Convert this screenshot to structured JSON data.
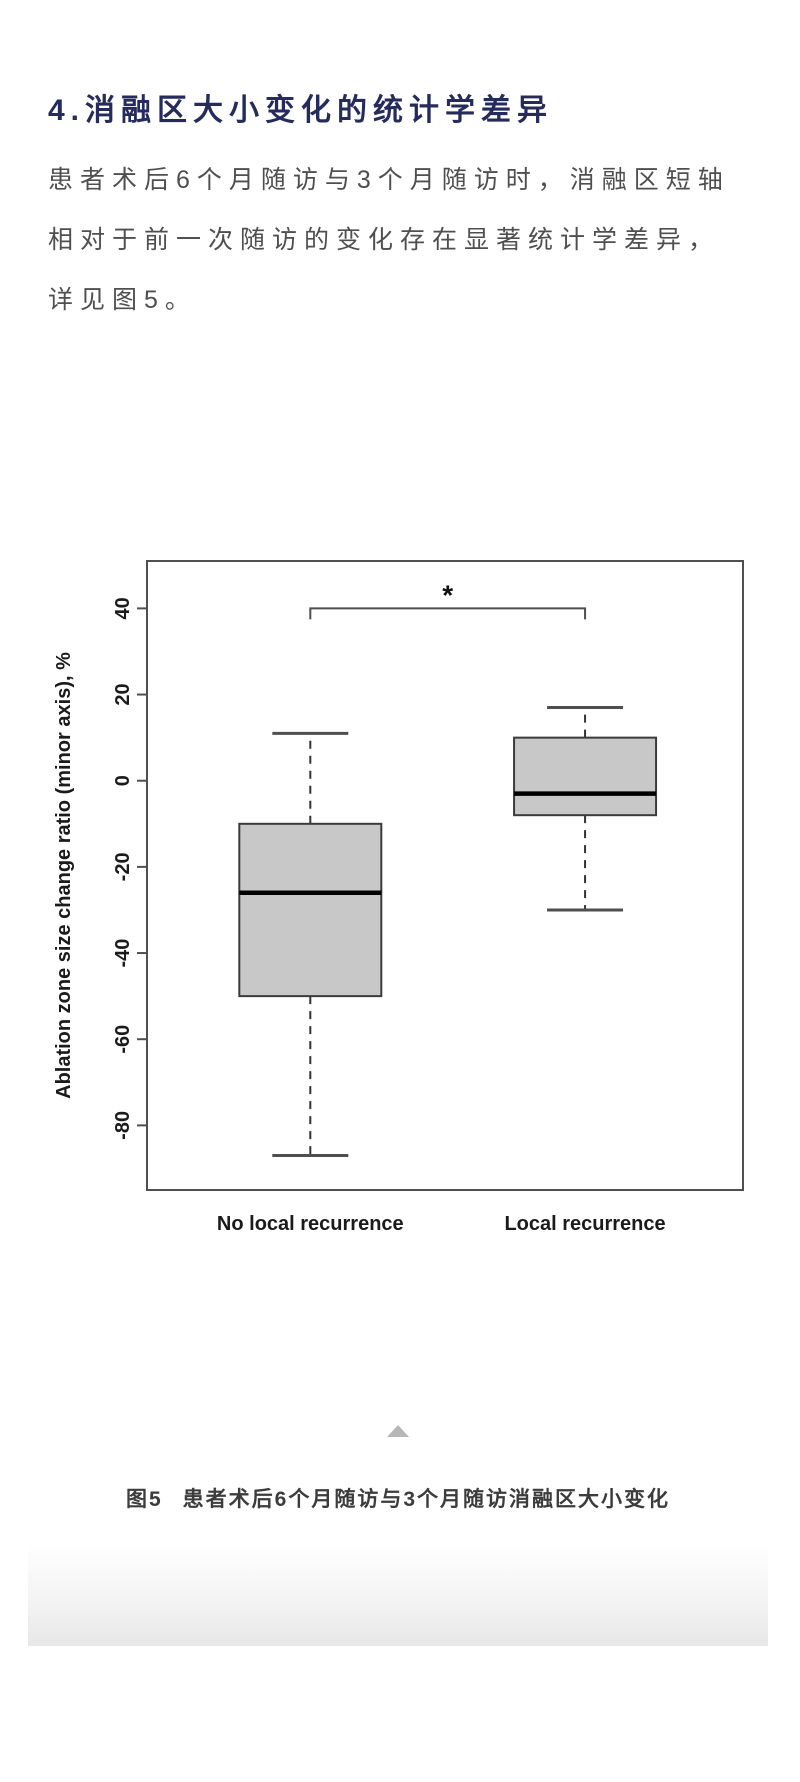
{
  "article": {
    "heading": "4.消融区大小变化的统计学差异",
    "paragraph_lines": [
      "患者术后6个月随访与3个月随访时，消融区短轴",
      "相对于前一次随访的变化存在显著统计学差异，",
      "详见图5。"
    ],
    "figure_caption": {
      "prefix": "图5",
      "text": "患者术后6个月随访与3个月随访消融区大小变化"
    }
  },
  "colors": {
    "heading": "#262b5e",
    "body_text": "#4f4f4f",
    "caption": "#3c3c3c",
    "triangle": "#b7b7b7",
    "box_fill": "#c8c8c8",
    "box_stroke": "#3b3b3b",
    "median": "#000000",
    "whisker": "#333333",
    "frame": "#4f4f4f",
    "axis_text": "#1b1b1b"
  },
  "chart_data": {
    "type": "boxplot",
    "title": "",
    "xlabel": "",
    "ylabel": "Ablation zone size change ratio (minor axis), %",
    "ylim": [
      -95,
      51
    ],
    "yticks": [
      40,
      20,
      0,
      -20,
      -40,
      -60,
      -80
    ],
    "grid": false,
    "legend": "none",
    "categories": [
      "No local recurrence",
      "Local recurrence"
    ],
    "series": [
      {
        "name": "No local recurrence",
        "whisker_low": -87,
        "q1": -50,
        "median": -26,
        "q3": -10,
        "whisker_high": 11
      },
      {
        "name": "Local recurrence",
        "whisker_low": -30,
        "q1": -8,
        "median": -3,
        "q3": 10,
        "whisker_high": 17
      }
    ],
    "significance": {
      "label": "*",
      "level": 40,
      "between": [
        "No local recurrence",
        "Local recurrence"
      ]
    }
  }
}
